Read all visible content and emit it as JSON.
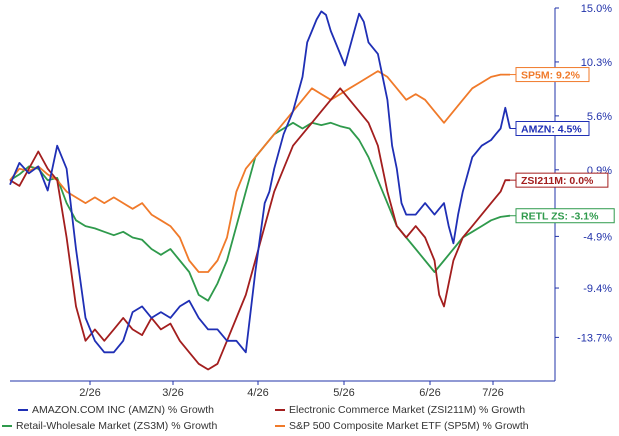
{
  "chart_data": {
    "type": "line",
    "x_ticks": [
      "2/26",
      "3/26",
      "4/26",
      "5/26",
      "6/26",
      "7/26"
    ],
    "y_ticks": [
      "15.0%",
      "10.3%",
      "5.6%",
      "0.9%",
      "-4.9%",
      "-9.4%",
      "-13.7%"
    ],
    "ylim": [
      -17.5,
      15.0
    ],
    "grid": false,
    "legend_position": "bottom",
    "series": [
      {
        "name": "AMAZON.COM INC (AMZN) % Growth",
        "tag": "AMZN: 4.5%",
        "color": "#1f2fb5",
        "tag_color": "#1f2fb5",
        "values": [
          [
            0,
            -0.4
          ],
          [
            2,
            1.5
          ],
          [
            4,
            0.6
          ],
          [
            6,
            1.2
          ],
          [
            8,
            -0.9
          ],
          [
            10,
            3.0
          ],
          [
            12,
            1.0
          ],
          [
            14,
            -6
          ],
          [
            16,
            -12
          ],
          [
            18,
            -14
          ],
          [
            20,
            -15
          ],
          [
            22,
            -15
          ],
          [
            24,
            -14
          ],
          [
            26,
            -11.5
          ],
          [
            28,
            -11
          ],
          [
            30,
            -12
          ],
          [
            32,
            -11.5
          ],
          [
            34,
            -12
          ],
          [
            36,
            -11
          ],
          [
            38,
            -10.5
          ],
          [
            40,
            -12
          ],
          [
            42,
            -13
          ],
          [
            44,
            -13
          ],
          [
            46,
            -14
          ],
          [
            48,
            -14
          ],
          [
            50,
            -15
          ],
          [
            52,
            -8
          ],
          [
            54,
            -2
          ],
          [
            55,
            -1
          ],
          [
            56,
            1
          ],
          [
            58,
            4
          ],
          [
            60,
            6
          ],
          [
            62,
            9
          ],
          [
            63,
            12
          ],
          [
            64,
            13
          ],
          [
            65,
            14
          ],
          [
            66,
            14.7
          ],
          [
            67,
            14.4
          ],
          [
            68,
            13
          ],
          [
            70,
            11
          ],
          [
            71,
            10
          ],
          [
            72,
            11.5
          ],
          [
            73,
            13
          ],
          [
            74,
            14.5
          ],
          [
            75,
            13.8
          ],
          [
            76,
            12
          ],
          [
            78,
            11
          ],
          [
            80,
            7
          ],
          [
            81,
            3
          ],
          [
            82,
            1
          ],
          [
            83,
            -2
          ],
          [
            84,
            -3
          ],
          [
            86,
            -3
          ],
          [
            88,
            -2
          ],
          [
            90,
            -3
          ],
          [
            91,
            -2.5
          ],
          [
            92,
            -2
          ],
          [
            93,
            -4
          ],
          [
            94,
            -5.5
          ],
          [
            95,
            -3
          ],
          [
            96,
            -1
          ],
          [
            98,
            2
          ],
          [
            100,
            3
          ],
          [
            102,
            3.5
          ],
          [
            103,
            4
          ],
          [
            104,
            4.5
          ],
          [
            105,
            6.3
          ],
          [
            106,
            4.5
          ]
        ]
      },
      {
        "name": "Electronic Commerce Market (ZSI211M) % Growth",
        "tag": "ZSI211M: 0.0%",
        "color": "#a31e1e",
        "tag_color": "#a31e1e",
        "values": [
          [
            0,
            0
          ],
          [
            2,
            -0.5
          ],
          [
            4,
            1
          ],
          [
            6,
            2.5
          ],
          [
            8,
            1
          ],
          [
            10,
            0
          ],
          [
            12,
            -5
          ],
          [
            14,
            -11
          ],
          [
            16,
            -14
          ],
          [
            18,
            -13
          ],
          [
            20,
            -14
          ],
          [
            22,
            -13
          ],
          [
            24,
            -12
          ],
          [
            26,
            -13
          ],
          [
            28,
            -13.5
          ],
          [
            30,
            -12
          ],
          [
            32,
            -13
          ],
          [
            34,
            -12.5
          ],
          [
            36,
            -14
          ],
          [
            38,
            -15
          ],
          [
            40,
            -16
          ],
          [
            42,
            -16.5
          ],
          [
            44,
            -16
          ],
          [
            46,
            -14
          ],
          [
            48,
            -12
          ],
          [
            50,
            -10
          ],
          [
            52,
            -7
          ],
          [
            54,
            -4
          ],
          [
            56,
            -1
          ],
          [
            58,
            1
          ],
          [
            60,
            3
          ],
          [
            62,
            4
          ],
          [
            64,
            5
          ],
          [
            66,
            6
          ],
          [
            68,
            7
          ],
          [
            70,
            8
          ],
          [
            72,
            7
          ],
          [
            74,
            6
          ],
          [
            76,
            5
          ],
          [
            77,
            4
          ],
          [
            78,
            3
          ],
          [
            80,
            -1
          ],
          [
            82,
            -4
          ],
          [
            84,
            -5
          ],
          [
            86,
            -4
          ],
          [
            88,
            -5
          ],
          [
            90,
            -7
          ],
          [
            91,
            -10
          ],
          [
            92,
            -11
          ],
          [
            93,
            -9
          ],
          [
            94,
            -7
          ],
          [
            96,
            -5
          ],
          [
            98,
            -4
          ],
          [
            100,
            -3
          ],
          [
            102,
            -2
          ],
          [
            104,
            -1
          ],
          [
            105,
            0
          ],
          [
            106,
            0
          ]
        ]
      },
      {
        "name": "Retail-Wholesale Market (ZS3M) % Growth",
        "tag": "RETL ZS: -3.1%",
        "color": "#2f9a4c",
        "tag_color": "#2f9a4c",
        "values": [
          [
            0,
            0
          ],
          [
            2,
            0.5
          ],
          [
            4,
            1.2
          ],
          [
            6,
            1
          ],
          [
            8,
            0
          ],
          [
            10,
            0.2
          ],
          [
            12,
            -2
          ],
          [
            14,
            -3.5
          ],
          [
            16,
            -4
          ],
          [
            18,
            -4.2
          ],
          [
            20,
            -4.5
          ],
          [
            22,
            -4.8
          ],
          [
            24,
            -4.5
          ],
          [
            26,
            -5
          ],
          [
            28,
            -5.2
          ],
          [
            30,
            -6
          ],
          [
            32,
            -6.5
          ],
          [
            34,
            -6
          ],
          [
            36,
            -7
          ],
          [
            38,
            -8
          ],
          [
            40,
            -10
          ],
          [
            42,
            -10.5
          ],
          [
            44,
            -9
          ],
          [
            46,
            -7
          ],
          [
            48,
            -4
          ],
          [
            50,
            -1
          ],
          [
            52,
            2
          ],
          [
            54,
            3
          ],
          [
            56,
            4
          ],
          [
            58,
            4.5
          ],
          [
            60,
            5
          ],
          [
            62,
            4.5
          ],
          [
            64,
            5
          ],
          [
            66,
            4.8
          ],
          [
            68,
            5
          ],
          [
            70,
            4.7
          ],
          [
            72,
            4.5
          ],
          [
            74,
            3.5
          ],
          [
            76,
            2
          ],
          [
            78,
            0
          ],
          [
            80,
            -2
          ],
          [
            82,
            -4
          ],
          [
            84,
            -5
          ],
          [
            86,
            -6
          ],
          [
            88,
            -7
          ],
          [
            90,
            -8
          ],
          [
            92,
            -7
          ],
          [
            94,
            -6
          ],
          [
            96,
            -5
          ],
          [
            98,
            -4.5
          ],
          [
            100,
            -4
          ],
          [
            102,
            -3.5
          ],
          [
            104,
            -3.2
          ],
          [
            106,
            -3.1
          ]
        ]
      },
      {
        "name": "S&P 500 Composite Market ETF (SP5M) % Growth",
        "tag": "SP5M: 9.2%",
        "color": "#f07a2a",
        "tag_color": "#f07a2a",
        "values": [
          [
            0,
            0
          ],
          [
            2,
            1
          ],
          [
            4,
            0.8
          ],
          [
            6,
            1.2
          ],
          [
            8,
            0.5
          ],
          [
            10,
            0
          ],
          [
            12,
            -1
          ],
          [
            14,
            -1.5
          ],
          [
            16,
            -2
          ],
          [
            18,
            -1.5
          ],
          [
            20,
            -2
          ],
          [
            22,
            -1.5
          ],
          [
            24,
            -2
          ],
          [
            26,
            -2.5
          ],
          [
            28,
            -2
          ],
          [
            30,
            -3
          ],
          [
            32,
            -3.5
          ],
          [
            34,
            -4
          ],
          [
            36,
            -5
          ],
          [
            38,
            -7
          ],
          [
            40,
            -8
          ],
          [
            42,
            -8
          ],
          [
            44,
            -7
          ],
          [
            46,
            -5
          ],
          [
            48,
            -1
          ],
          [
            50,
            1
          ],
          [
            52,
            2
          ],
          [
            54,
            3
          ],
          [
            56,
            4
          ],
          [
            58,
            5
          ],
          [
            60,
            6
          ],
          [
            62,
            7
          ],
          [
            64,
            8
          ],
          [
            66,
            7.5
          ],
          [
            68,
            7
          ],
          [
            70,
            7.5
          ],
          [
            72,
            8
          ],
          [
            74,
            8.5
          ],
          [
            76,
            9
          ],
          [
            78,
            9.5
          ],
          [
            80,
            9
          ],
          [
            82,
            8
          ],
          [
            84,
            7
          ],
          [
            86,
            7.5
          ],
          [
            88,
            7
          ],
          [
            90,
            6
          ],
          [
            92,
            5
          ],
          [
            94,
            6
          ],
          [
            96,
            7
          ],
          [
            98,
            8
          ],
          [
            100,
            8.5
          ],
          [
            102,
            9
          ],
          [
            104,
            9.2
          ],
          [
            106,
            9.2
          ]
        ]
      }
    ]
  }
}
